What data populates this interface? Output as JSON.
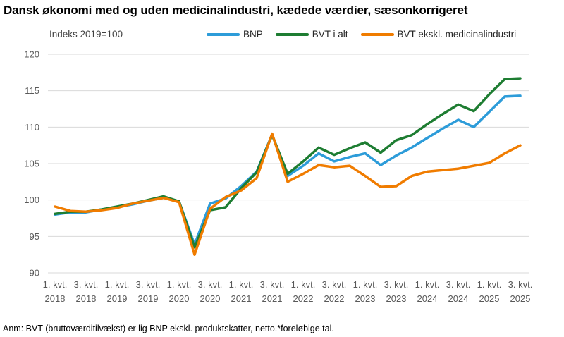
{
  "title": "Dansk økonomi med og uden medicinalindustri, kædede værdier, sæsonkorrigeret",
  "axis_note": "Indeks 2019=100",
  "footnote": "Anm: BVT (bruttoværditilvækst) er lig BNP ekskl. produktskatter, netto.*foreløbige tal.",
  "colors": {
    "bnp": "#2D9CD9",
    "bvt": "#1E7D32",
    "bvt_ex_med": "#F07C00",
    "gridline": "#D9D9D9",
    "axis_text": "#595959"
  },
  "chart_data": {
    "type": "line",
    "title": "Dansk økonomi med og uden medicinalindustri, kædede værdier, sæsonkorrigeret",
    "axis_note": "Indeks 2019=100",
    "ylim": [
      90,
      120
    ],
    "yticks": [
      90,
      95,
      100,
      105,
      110,
      115,
      120
    ],
    "grid": "horizontal",
    "legend_position": "top",
    "x_tick_every": 2,
    "categories": [
      "1. kvt. 2018",
      "2. kvt. 2018",
      "3. kvt. 2018",
      "4. kvt. 2018",
      "1. kvt. 2019",
      "2. kvt. 2019",
      "3. kvt. 2019",
      "4. kvt. 2019",
      "1. kvt. 2020",
      "2. kvt. 2020",
      "3. kvt. 2020",
      "4. kvt. 2020",
      "1. kvt. 2021",
      "2. kvt. 2021",
      "3. kvt. 2021",
      "4. kvt. 2021",
      "1. kvt. 2022",
      "2. kvt. 2022",
      "3. kvt. 2022",
      "4. kvt. 2022",
      "1. kvt. 2023",
      "2. kvt. 2023",
      "3. kvt. 2023",
      "4. kvt. 2023",
      "1. kvt. 2024",
      "2. kvt. 2024",
      "3. kvt. 2024",
      "4. kvt. 2024",
      "1. kvt. 2025",
      "2. kvt. 2025",
      "3. kvt. 2025"
    ],
    "series": [
      {
        "name": "BNP",
        "color": "#2D9CD9",
        "values": [
          98.0,
          98.3,
          98.3,
          98.7,
          99.0,
          99.4,
          99.9,
          100.3,
          99.8,
          93.9,
          99.5,
          100.2,
          101.9,
          103.9,
          109.0,
          103.3,
          104.7,
          106.4,
          105.3,
          105.9,
          106.4,
          104.8,
          106.1,
          107.2,
          108.5,
          109.8,
          111.0,
          110.0,
          112.1,
          114.2,
          114.3
        ]
      },
      {
        "name": "BVT i alt",
        "color": "#1E7D32",
        "values": [
          98.1,
          98.4,
          98.4,
          98.7,
          99.1,
          99.5,
          100.0,
          100.5,
          99.8,
          93.5,
          98.6,
          99.0,
          101.6,
          103.8,
          108.9,
          103.6,
          105.3,
          107.2,
          106.2,
          107.1,
          107.9,
          106.5,
          108.2,
          108.9,
          110.4,
          111.8,
          113.1,
          112.2,
          114.5,
          116.6,
          116.7
        ]
      },
      {
        "name": "BVT ekskl. medicinalindustri",
        "color": "#F07C00",
        "values": [
          99.1,
          98.5,
          98.4,
          98.6,
          98.9,
          99.5,
          99.9,
          100.3,
          99.7,
          92.5,
          98.8,
          100.4,
          101.3,
          103.0,
          109.1,
          102.5,
          103.6,
          104.8,
          104.5,
          104.7,
          103.3,
          101.8,
          101.9,
          103.3,
          103.9,
          104.1,
          104.3,
          104.7,
          105.1,
          106.4,
          107.5
        ]
      }
    ]
  }
}
